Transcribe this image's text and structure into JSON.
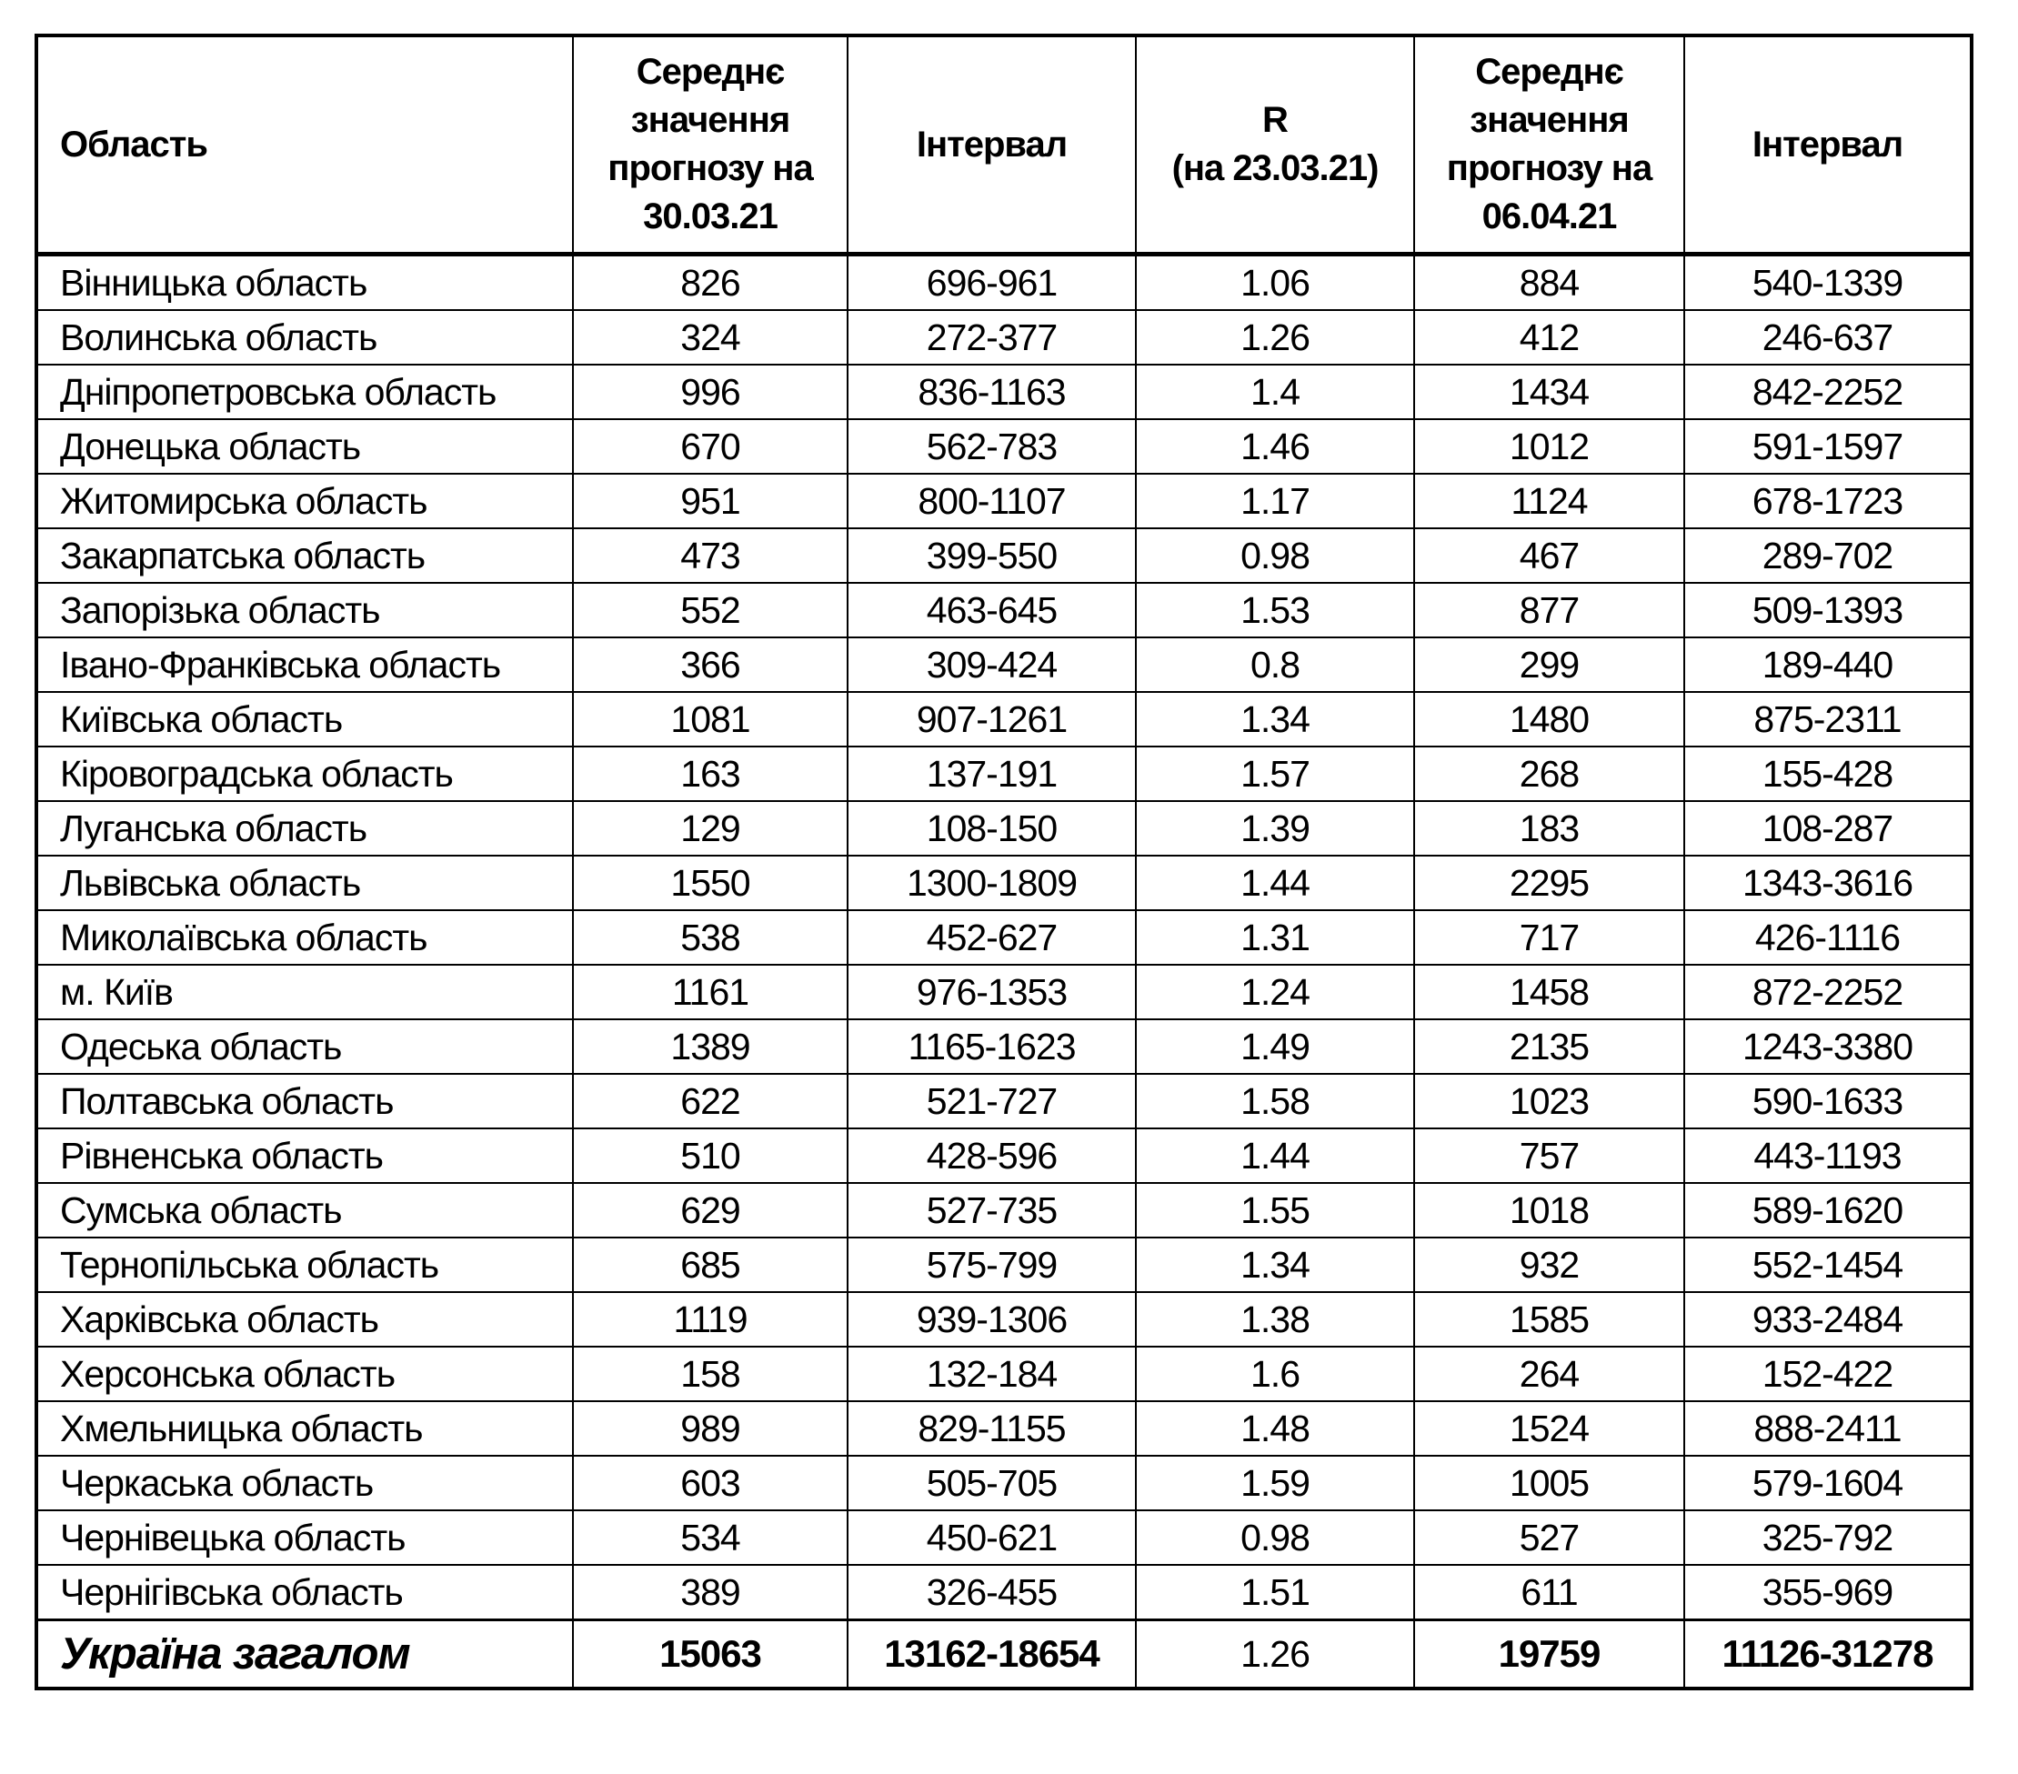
{
  "table": {
    "text_color": "#000000",
    "border_color": "#000000",
    "background_color": "#ffffff",
    "headers": {
      "region": "Область",
      "mean1": "Середнє\nзначення\nпрогнозу на\n30.03.21",
      "interval1": "Інтервал",
      "r": "R\n(на 23.03.21)",
      "mean2": "Середнє\nзначення\nпрогнозу на\n06.04.21",
      "interval2": "Інтервал"
    },
    "rows": [
      [
        "Вінницька область",
        "826",
        "696-961",
        "1.06",
        "884",
        "540-1339"
      ],
      [
        "Волинська область",
        "324",
        "272-377",
        "1.26",
        "412",
        "246-637"
      ],
      [
        "Дніпропетровська область",
        "996",
        "836-1163",
        "1.4",
        "1434",
        "842-2252"
      ],
      [
        "Донецька область",
        "670",
        "562-783",
        "1.46",
        "1012",
        "591-1597"
      ],
      [
        "Житомирська область",
        "951",
        "800-1107",
        "1.17",
        "1124",
        "678-1723"
      ],
      [
        "Закарпатська область",
        "473",
        "399-550",
        "0.98",
        "467",
        "289-702"
      ],
      [
        "Запорізька область",
        "552",
        "463-645",
        "1.53",
        "877",
        "509-1393"
      ],
      [
        "Івано-Франківська область",
        "366",
        "309-424",
        "0.8",
        "299",
        "189-440"
      ],
      [
        "Київська область",
        "1081",
        "907-1261",
        "1.34",
        "1480",
        "875-2311"
      ],
      [
        "Кіровоградська область",
        "163",
        "137-191",
        "1.57",
        "268",
        "155-428"
      ],
      [
        "Луганська область",
        "129",
        "108-150",
        "1.39",
        "183",
        "108-287"
      ],
      [
        "Львівська область",
        "1550",
        "1300-1809",
        "1.44",
        "2295",
        "1343-3616"
      ],
      [
        "Миколаївська область",
        "538",
        "452-627",
        "1.31",
        "717",
        "426-1116"
      ],
      [
        "м. Київ",
        "1161",
        "976-1353",
        "1.24",
        "1458",
        "872-2252"
      ],
      [
        "Одеська область",
        "1389",
        "1165-1623",
        "1.49",
        "2135",
        "1243-3380"
      ],
      [
        "Полтавська область",
        "622",
        "521-727",
        "1.58",
        "1023",
        "590-1633"
      ],
      [
        "Рівненська область",
        "510",
        "428-596",
        "1.44",
        "757",
        "443-1193"
      ],
      [
        "Сумська область",
        "629",
        "527-735",
        "1.55",
        "1018",
        "589-1620"
      ],
      [
        "Тернопільська область",
        "685",
        "575-799",
        "1.34",
        "932",
        "552-1454"
      ],
      [
        "Харківська область",
        "1119",
        "939-1306",
        "1.38",
        "1585",
        "933-2484"
      ],
      [
        "Херсонська область",
        "158",
        "132-184",
        "1.6",
        "264",
        "152-422"
      ],
      [
        "Хмельницька область",
        "989",
        "829-1155",
        "1.48",
        "1524",
        "888-2411"
      ],
      [
        "Черкаська область",
        "603",
        "505-705",
        "1.59",
        "1005",
        "579-1604"
      ],
      [
        "Чернівецька область",
        "534",
        "450-621",
        "0.98",
        "527",
        "325-792"
      ],
      [
        "Чернігівська область",
        "389",
        "326-455",
        "1.51",
        "611",
        "355-969"
      ]
    ],
    "total": {
      "label": "Україна загалом",
      "mean1": "15063",
      "interval1": "13162-18654",
      "r": "1.26",
      "mean2": "19759",
      "interval2": "11126-31278"
    }
  }
}
